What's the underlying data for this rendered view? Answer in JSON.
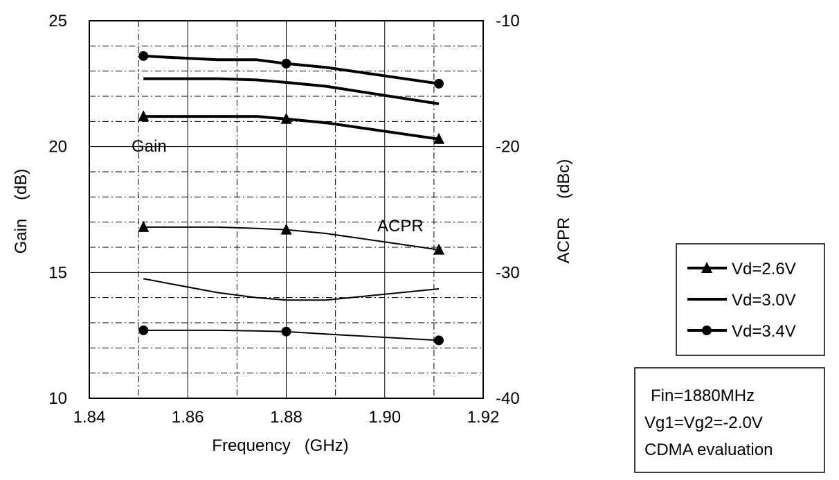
{
  "chart_data": {
    "type": "line",
    "xlabel": "Frequency   (GHz)",
    "ylabel_left": "Gain    (dB)",
    "ylabel_right": "ACPR    (dBc)",
    "xlim": [
      1.84,
      1.92
    ],
    "ylim_left": [
      10,
      25
    ],
    "ylim_right": [
      -40,
      -10
    ],
    "x_ticks": [
      "1.84",
      "1.86",
      "1.88",
      "1.90",
      "1.92"
    ],
    "y_left_ticks": [
      "10",
      "15",
      "20",
      "25"
    ],
    "y_right_ticks": [
      "-40",
      "-30",
      "-20",
      "-10"
    ],
    "grid": true,
    "legend_position": "right",
    "annotations": {
      "gain": "Gain",
      "acpr": "ACPR"
    },
    "legend": [
      {
        "label": "Vd=2.6V",
        "marker": "triangle"
      },
      {
        "label": "Vd=3.0V",
        "marker": "none"
      },
      {
        "label": "Vd=3.4V",
        "marker": "circle"
      }
    ],
    "conditions": [
      "Fin=1880MHz",
      "Vg1=Vg2=-2.0V",
      "CDMA evaluation"
    ],
    "series": [
      {
        "group": "gain",
        "legend_index": 0,
        "marker": "triangle",
        "thick": true,
        "x": [
          1.851,
          1.866,
          1.874,
          1.88,
          1.888,
          1.911
        ],
        "y": [
          21.2,
          21.2,
          21.2,
          21.1,
          20.95,
          20.3
        ]
      },
      {
        "group": "gain",
        "legend_index": 1,
        "marker": "none",
        "thick": true,
        "x": [
          1.851,
          1.866,
          1.874,
          1.88,
          1.888,
          1.911
        ],
        "y": [
          22.7,
          22.7,
          22.65,
          22.55,
          22.4,
          21.7
        ]
      },
      {
        "group": "gain",
        "legend_index": 2,
        "marker": "circle",
        "thick": true,
        "x": [
          1.851,
          1.866,
          1.874,
          1.88,
          1.888,
          1.911
        ],
        "y": [
          23.6,
          23.45,
          23.45,
          23.3,
          23.15,
          22.5
        ]
      },
      {
        "group": "acpr",
        "legend_index": 0,
        "marker": "triangle",
        "thick": false,
        "x": [
          1.851,
          1.866,
          1.874,
          1.88,
          1.888,
          1.911
        ],
        "y": [
          -26.4,
          -26.4,
          -26.5,
          -26.6,
          -26.9,
          -28.2
        ]
      },
      {
        "group": "acpr",
        "legend_index": 1,
        "marker": "none",
        "thick": false,
        "x": [
          1.851,
          1.866,
          1.874,
          1.88,
          1.888,
          1.911
        ],
        "y": [
          -30.5,
          -31.6,
          -32.0,
          -32.2,
          -32.2,
          -31.3
        ]
      },
      {
        "group": "acpr",
        "legend_index": 2,
        "marker": "circle",
        "thick": false,
        "x": [
          1.851,
          1.866,
          1.874,
          1.88,
          1.888,
          1.911
        ],
        "y": [
          -34.6,
          -34.6,
          -34.65,
          -34.7,
          -34.9,
          -35.4
        ]
      }
    ]
  }
}
